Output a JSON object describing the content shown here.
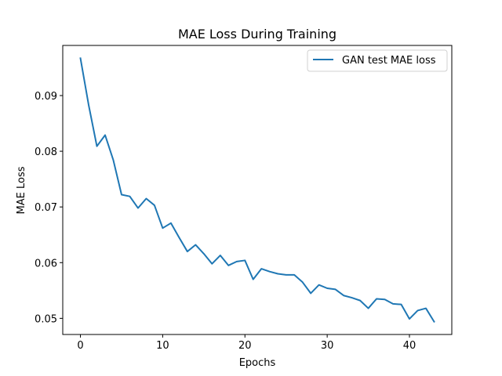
{
  "chart_data": {
    "type": "line",
    "title": "MAE Loss During Training",
    "xlabel": "Epochs",
    "ylabel": "MAE Loss",
    "xlim": [
      -2.15,
      45.15
    ],
    "ylim": [
      0.0471,
      0.099
    ],
    "xticks": [
      0,
      10,
      20,
      30,
      40
    ],
    "yticks": [
      0.05,
      0.06,
      0.07,
      0.08,
      0.09
    ],
    "xtick_labels": [
      "0",
      "10",
      "20",
      "30",
      "40"
    ],
    "ytick_labels": [
      "0.05",
      "0.06",
      "0.07",
      "0.08",
      "0.09"
    ],
    "grid": false,
    "legend": "upper right",
    "series": [
      {
        "name": "GAN test MAE loss",
        "color": "#1f77b4",
        "x": [
          0,
          1,
          2,
          3,
          4,
          5,
          6,
          7,
          8,
          9,
          10,
          11,
          12,
          13,
          14,
          15,
          16,
          17,
          18,
          19,
          20,
          21,
          22,
          23,
          24,
          25,
          26,
          27,
          28,
          29,
          30,
          31,
          32,
          33,
          34,
          35,
          36,
          37,
          38,
          39,
          40,
          41,
          42,
          43
        ],
        "values": [
          0.0967,
          0.0883,
          0.0809,
          0.0829,
          0.0784,
          0.0722,
          0.0719,
          0.0698,
          0.0715,
          0.0703,
          0.0662,
          0.0671,
          0.0645,
          0.062,
          0.0632,
          0.0616,
          0.0598,
          0.0613,
          0.0595,
          0.0602,
          0.0604,
          0.057,
          0.0589,
          0.0584,
          0.058,
          0.0578,
          0.0578,
          0.0565,
          0.0545,
          0.056,
          0.0554,
          0.0552,
          0.0541,
          0.0537,
          0.0532,
          0.0518,
          0.0535,
          0.0534,
          0.0526,
          0.0525,
          0.0499,
          0.0514,
          0.0518,
          0.0494
        ]
      }
    ]
  }
}
